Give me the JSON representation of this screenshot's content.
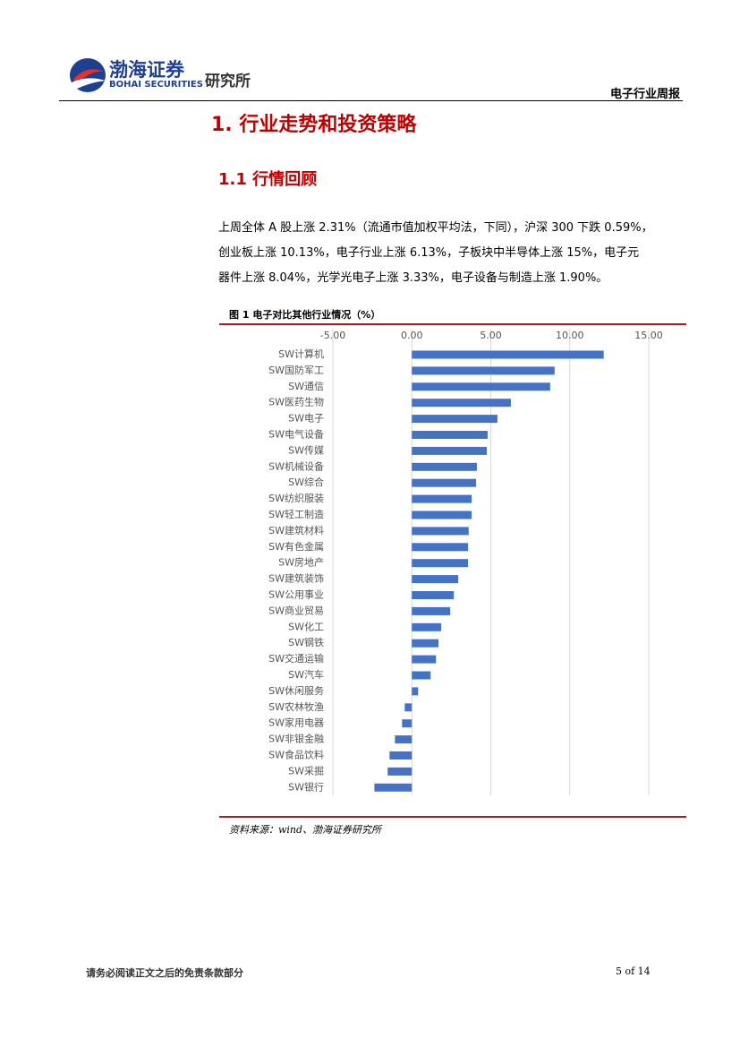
{
  "header": {
    "brand": "渤海证券",
    "brand_en": "BOHAI SECURITIES",
    "institute": "研究所",
    "report": "电子行业周报"
  },
  "section": {
    "heading": "1. 行业走势和投资策略",
    "subheading": "1.1 行情回顾",
    "paragraph": [
      "上周全体 A 股上涨 2.31%（流通市值加权平均法，下同），沪深 300 下跌 0.59%，",
      "创业板上涨 10.13%，电子行业上涨 6.13%，子板块中半导体上涨 15%，电子元",
      "器件上涨 8.04%，光学光电子上涨 3.33%，电子设备与制造上涨 1.90%。"
    ]
  },
  "chart_data": {
    "type": "bar",
    "orientation": "horizontal",
    "title": "图 1 电子对比其他行业情况（%）",
    "note": "资料来源：wind、渤海证券研究所",
    "color": "#4472c4",
    "grid": true,
    "xlim": [
      -5,
      15
    ],
    "xticks": [
      {
        "value": -5,
        "label": "-5.00"
      },
      {
        "value": 0,
        "label": "0.00"
      },
      {
        "value": 5,
        "label": "5.00"
      },
      {
        "value": 10,
        "label": "10.00"
      },
      {
        "value": 15,
        "label": "15.00"
      }
    ],
    "categories": [
      "SW计算机",
      "SW国防军工",
      "SW通信",
      "SW医药生物",
      "SW电子",
      "SW电气设备",
      "SW传媒",
      "SW机械设备",
      "SW综合",
      "SW纺织服装",
      "SW轻工制造",
      "SW建筑材料",
      "SW有色金属",
      "SW房地产",
      "SW建筑装饰",
      "SW公用事业",
      "SW商业贸易",
      "SW化工",
      "SW钢铁",
      "SW交通运输",
      "SW汽车",
      "SW休闲服务",
      "SW农林牧渔",
      "SW家用电器",
      "SW非银金融",
      "SW食品饮料",
      "SW采掘",
      "SW银行"
    ],
    "values": [
      12.15,
      9.04,
      8.76,
      6.27,
      5.42,
      4.8,
      4.75,
      4.12,
      4.07,
      3.79,
      3.79,
      3.6,
      3.56,
      3.56,
      2.94,
      2.66,
      2.43,
      1.86,
      1.69,
      1.53,
      1.19,
      0.4,
      -0.45,
      -0.62,
      -1.07,
      -1.41,
      -1.53,
      -2.37
    ]
  },
  "footer": {
    "disclaimer": "请务必阅读正文之后的免责条款部分",
    "page": "5 of 14"
  }
}
